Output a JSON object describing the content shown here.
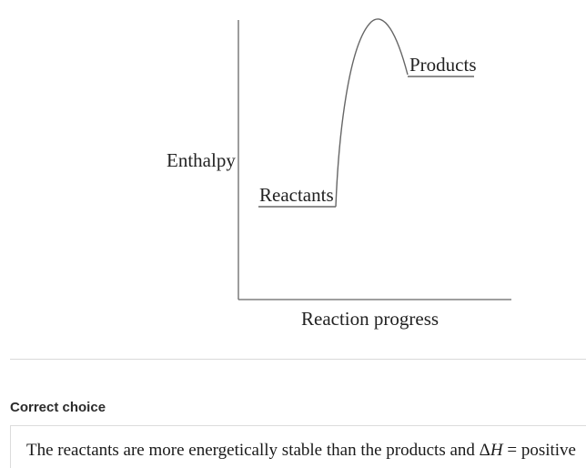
{
  "diagram": {
    "y_axis_label": "Enthalpy",
    "x_axis_label": "Reaction progress",
    "reactants_label": "Reactants",
    "products_label": "Products",
    "line_color": "#666666"
  },
  "answer": {
    "heading": "Correct choice",
    "text_before": "The reactants are more energetically stable than the products and Δ",
    "variable": "H",
    "text_after": " = positive"
  }
}
